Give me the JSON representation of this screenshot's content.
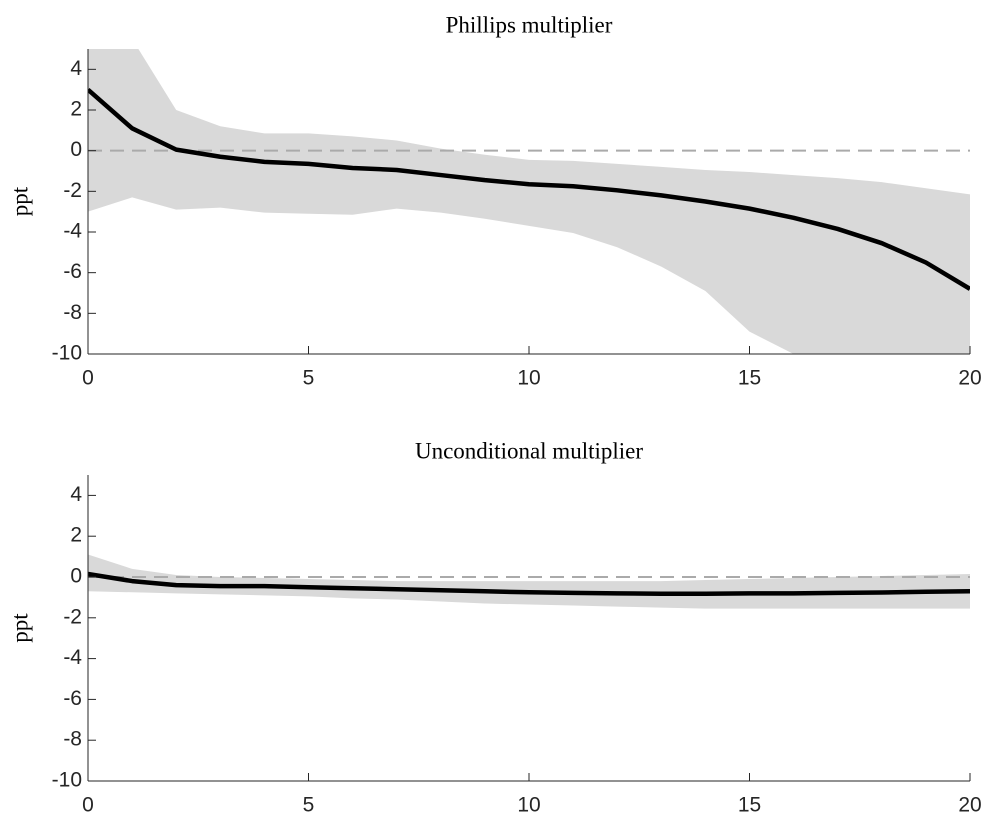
{
  "chart_data": [
    {
      "type": "line",
      "title": "Phillips multiplier",
      "ylabel": "ppt",
      "x": [
        0,
        1,
        2,
        3,
        4,
        5,
        6,
        7,
        8,
        9,
        10,
        11,
        12,
        13,
        14,
        15,
        16,
        17,
        18,
        19,
        20
      ],
      "values": [
        3.0,
        1.1,
        0.05,
        -0.3,
        -0.55,
        -0.65,
        -0.85,
        -0.95,
        -1.2,
        -1.45,
        -1.65,
        -1.75,
        -1.95,
        -2.2,
        -2.5,
        -2.85,
        -3.3,
        -3.85,
        -4.55,
        -5.5,
        -6.8
      ],
      "color": "#000000",
      "band": {
        "upper": [
          8,
          5.5,
          2.0,
          1.2,
          0.85,
          0.85,
          0.7,
          0.5,
          0.1,
          -0.2,
          -0.45,
          -0.5,
          -0.65,
          -0.8,
          -0.95,
          -1.05,
          -1.2,
          -1.35,
          -1.55,
          -1.85,
          -2.15
        ],
        "lower": [
          -3.0,
          -2.3,
          -2.9,
          -2.8,
          -3.05,
          -3.1,
          -3.15,
          -2.85,
          -3.05,
          -3.35,
          -3.7,
          -4.05,
          -4.75,
          -5.7,
          -6.9,
          -8.9,
          -10,
          -11,
          -12,
          -13,
          -14
        ],
        "color": "#d9d9d9"
      },
      "hline": {
        "value": 0,
        "color": "#aaaaaa",
        "dashed": true
      },
      "xlim": [
        0,
        20
      ],
      "xticks": [
        0,
        5,
        10,
        15,
        20
      ],
      "ylim": [
        -10,
        5
      ],
      "yticks": [
        -10,
        -8,
        -6,
        -4,
        -2,
        0,
        2,
        4
      ]
    },
    {
      "type": "line",
      "title": "Unconditional multiplier",
      "ylabel": "ppt",
      "x": [
        0,
        1,
        2,
        3,
        4,
        5,
        6,
        7,
        8,
        9,
        10,
        11,
        12,
        13,
        14,
        15,
        16,
        17,
        18,
        19,
        20
      ],
      "values": [
        0.15,
        -0.2,
        -0.4,
        -0.45,
        -0.45,
        -0.5,
        -0.55,
        -0.6,
        -0.65,
        -0.7,
        -0.75,
        -0.78,
        -0.8,
        -0.82,
        -0.82,
        -0.8,
        -0.8,
        -0.78,
        -0.76,
        -0.72,
        -0.7
      ],
      "color": "#000000",
      "band": {
        "upper": [
          1.1,
          0.4,
          0.1,
          0,
          -0.05,
          -0.1,
          -0.15,
          -0.2,
          -0.2,
          -0.2,
          -0.2,
          -0.2,
          -0.2,
          -0.2,
          -0.15,
          -0.1,
          -0.05,
          0,
          0.05,
          0.1,
          0.15
        ],
        "lower": [
          -0.7,
          -0.75,
          -0.8,
          -0.85,
          -0.9,
          -0.95,
          -1.05,
          -1.1,
          -1.2,
          -1.3,
          -1.35,
          -1.4,
          -1.45,
          -1.5,
          -1.55,
          -1.55,
          -1.55,
          -1.55,
          -1.55,
          -1.55,
          -1.55
        ],
        "color": "#d9d9d9"
      },
      "hline": {
        "value": 0,
        "color": "#aaaaaa",
        "dashed": true
      },
      "xlim": [
        0,
        20
      ],
      "xticks": [
        0,
        5,
        10,
        15,
        20
      ],
      "ylim": [
        -10,
        5
      ],
      "yticks": [
        -10,
        -8,
        -6,
        -4,
        -2,
        0,
        2,
        4
      ]
    }
  ]
}
